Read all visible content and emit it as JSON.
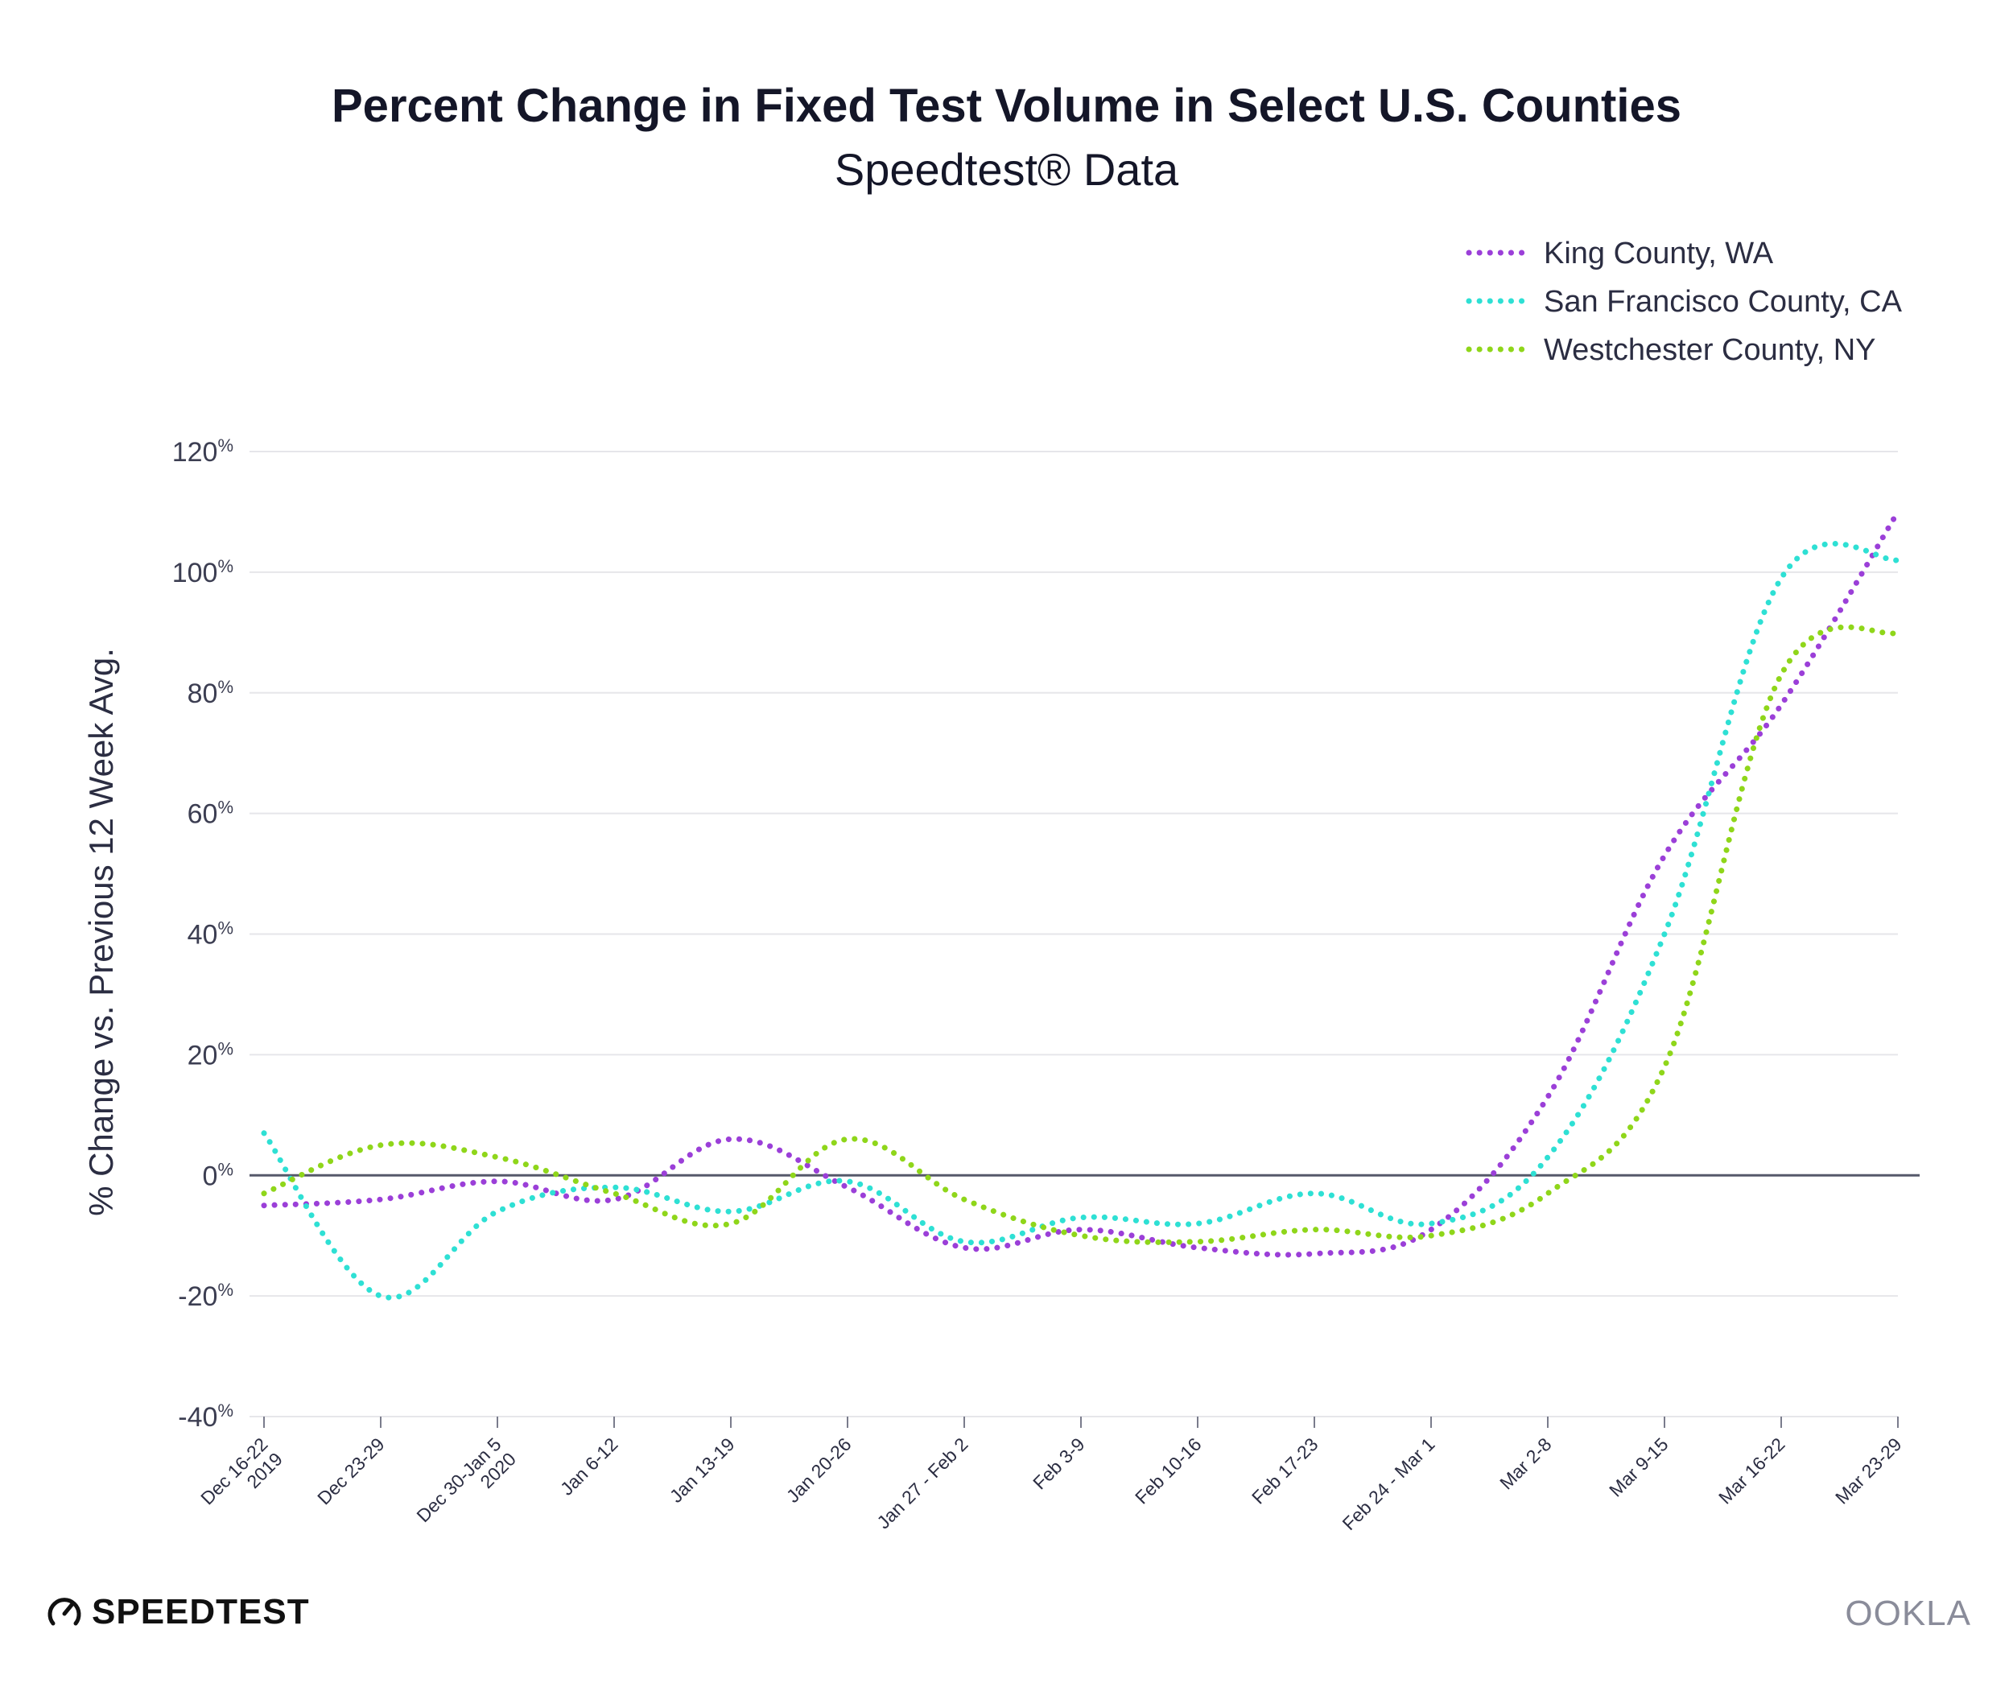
{
  "title": "Percent Change in Fixed Test Volume in Select U.S. Counties",
  "subtitle": "Speedtest® Data",
  "brand": {
    "left": "SPEEDTEST",
    "right": "OOKLA"
  },
  "icons": {
    "brand_left": "speedometer-gauge-icon"
  },
  "colors": {
    "king": "#9b3fd8",
    "sf": "#2ee0d4",
    "westchester": "#8fd61a",
    "zero_line": "#55586a",
    "grid": "#e6e6ea"
  },
  "chart_data": {
    "type": "line",
    "ylabel": "% Change vs. Previous 12 Week Avg.",
    "xlabel": "",
    "ylim": [
      -40,
      120
    ],
    "yticks": [
      -40,
      -20,
      0,
      20,
      40,
      60,
      80,
      100,
      120
    ],
    "ytick_labels": [
      "-40%",
      "-20%",
      "0%",
      "20%",
      "40%",
      "60%",
      "80%",
      "100%",
      "120%"
    ],
    "grid": true,
    "legend_position": "top-right",
    "line_style": "dotted",
    "categories": [
      [
        "Dec 16-22",
        "2019"
      ],
      [
        "Dec 23-29"
      ],
      [
        "Dec 30-Jan 5",
        "2020"
      ],
      [
        "Jan 6-12"
      ],
      [
        "Jan 13-19"
      ],
      [
        "Jan 20-26"
      ],
      [
        "Jan 27 - Feb 2"
      ],
      [
        "Feb 3-9"
      ],
      [
        "Feb 10-16"
      ],
      [
        "Feb 17-23"
      ],
      [
        "Feb 24 - Mar 1"
      ],
      [
        "Mar 2-8"
      ],
      [
        "Mar 9-15"
      ],
      [
        "Mar 16-22"
      ],
      [
        "Mar 23-29"
      ]
    ],
    "series": [
      {
        "name": "King County, WA",
        "color": "#9b3fd8",
        "values": [
          -5,
          -4,
          -1,
          -4,
          6,
          -2,
          -12,
          -9,
          -12,
          -13,
          -9,
          13,
          53,
          78,
          110
        ]
      },
      {
        "name": "San Francisco County, CA",
        "color": "#2ee0d4",
        "values": [
          7,
          -20,
          -6,
          -2,
          -6,
          -1,
          -11,
          -7,
          -8,
          -3,
          -8,
          3,
          40,
          99,
          102
        ]
      },
      {
        "name": "Westchester County, NY",
        "color": "#8fd61a",
        "values": [
          -3,
          5,
          3,
          -3,
          -8,
          6,
          -4,
          -10,
          -11,
          -9,
          -10,
          -3,
          18,
          83,
          90
        ]
      }
    ]
  }
}
